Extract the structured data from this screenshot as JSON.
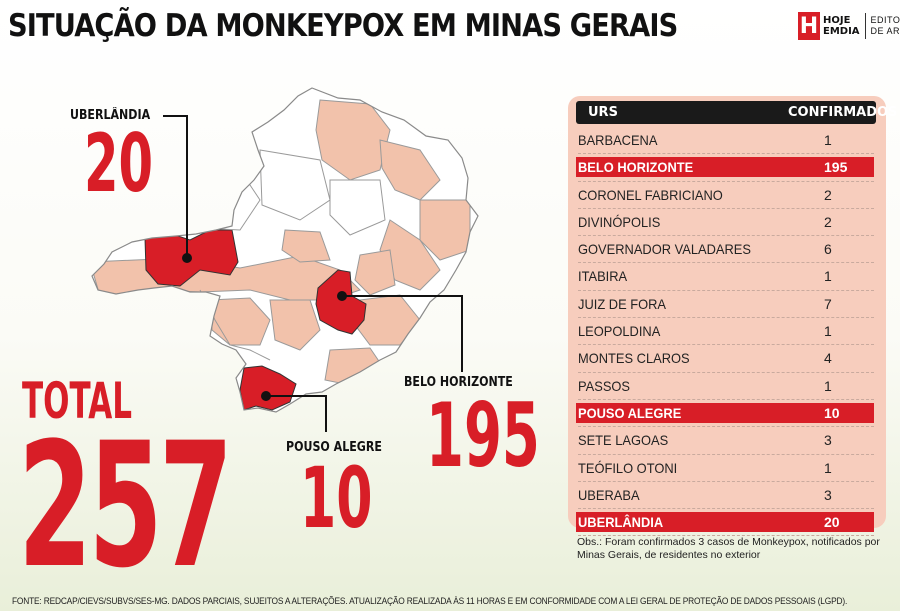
{
  "header": {
    "title": "SITUAÇÃO DA MONKEYPOX EM MINAS GERAIS",
    "logo_letter": "H",
    "logo_line1": "HOJE",
    "logo_line2": "EMDIA",
    "editoria_line1": "EDITORIA",
    "editoria_line2": "DE ARTE"
  },
  "callouts": {
    "uberlandia": {
      "label": "UBERLÂNDIA",
      "value": "20"
    },
    "belo_horizonte": {
      "label": "BELO HORIZONTE",
      "value": "195"
    },
    "pouso_alegre": {
      "label": "POUSO ALEGRE",
      "value": "10"
    }
  },
  "total": {
    "label": "TOTAL",
    "value": "257"
  },
  "table": {
    "col_urs": "URS",
    "col_confirmados": "CONFIRMADOS",
    "rows": [
      {
        "urs": "BARBACENA",
        "confirmados": "1",
        "highlight": false
      },
      {
        "urs": "BELO HORIZONTE",
        "confirmados": "195",
        "highlight": true
      },
      {
        "urs": "CORONEL FABRICIANO",
        "confirmados": "2",
        "highlight": false
      },
      {
        "urs": "DIVINÓPOLIS",
        "confirmados": "2",
        "highlight": false
      },
      {
        "urs": "GOVERNADOR VALADARES",
        "confirmados": "6",
        "highlight": false
      },
      {
        "urs": "ITABIRA",
        "confirmados": "1",
        "highlight": false
      },
      {
        "urs": "JUIZ DE FORA",
        "confirmados": "7",
        "highlight": false
      },
      {
        "urs": "LEOPOLDINA",
        "confirmados": "1",
        "highlight": false
      },
      {
        "urs": "MONTES CLAROS",
        "confirmados": "4",
        "highlight": false
      },
      {
        "urs": "PASSOS",
        "confirmados": "1",
        "highlight": false
      },
      {
        "urs": "POUSO ALEGRE",
        "confirmados": "10",
        "highlight": true
      },
      {
        "urs": "SETE LAGOAS",
        "confirmados": "3",
        "highlight": false
      },
      {
        "urs": "TEÓFILO OTONI",
        "confirmados": "1",
        "highlight": false
      },
      {
        "urs": "UBERABA",
        "confirmados": "3",
        "highlight": false
      },
      {
        "urs": "UBERLÂNDIA",
        "confirmados": "20",
        "highlight": true
      }
    ]
  },
  "note": "Obs.: Foram confirmados 3 casos de Monkeypox, notificados por Minas Gerais, de residentes no exterior",
  "source": "FONTE: REDCAP/CIEVS/SUBVS/SES-MG. DADOS PARCIAIS, SUJEITOS A ALTERAÇÕES. ATUALIZAÇÃO REALIZADA ÀS 11 HORAS E EM CONFORMIDADE COM A LEI GERAL DE PROTEÇÃO DE DADOS PESSOAIS (LGPD).",
  "colors": {
    "accent_red": "#d81e27",
    "region_salmon": "#f2c2ab",
    "region_white": "#ffffff",
    "table_bg": "#f7cdbd",
    "table_header": "#1a1a1a"
  }
}
